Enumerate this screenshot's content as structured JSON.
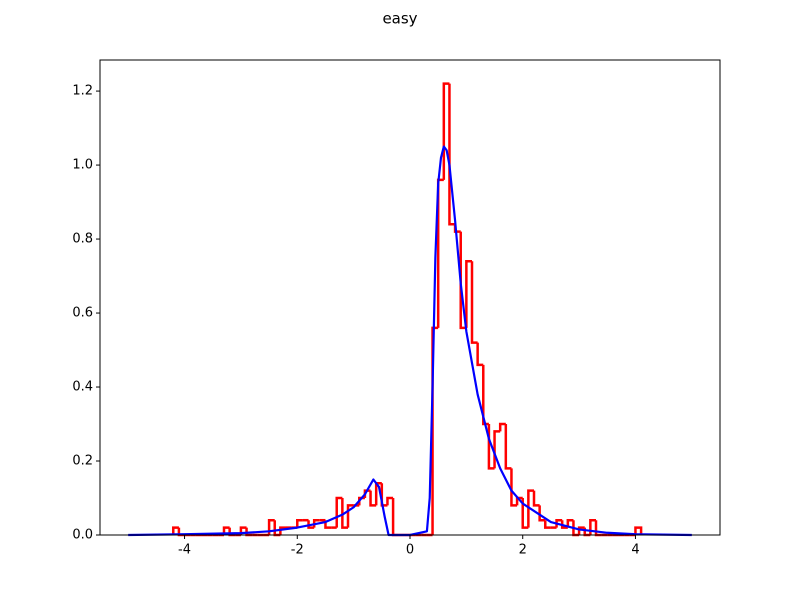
{
  "chart_data": {
    "type": "histogram",
    "title": "easy",
    "color": "#ff0000",
    "bins": [
      -4.2,
      -4.1,
      -4.0,
      -3.9,
      -3.8,
      -3.7,
      -3.6,
      -3.5,
      -3.4,
      -3.3,
      -3.2,
      -3.1,
      -3.0,
      -2.9,
      -2.8,
      -2.7,
      -2.6,
      -2.5,
      -2.4,
      -2.3,
      -2.2,
      -2.1,
      -2.0,
      -1.9,
      -1.8,
      -1.7,
      -1.6,
      -1.5,
      -1.4,
      -1.3,
      -1.2,
      -1.1,
      -1.0,
      -0.9,
      -0.8,
      -0.7,
      -0.6,
      -0.5,
      -0.4,
      -0.3,
      -0.2,
      -0.1,
      0.0,
      0.1,
      0.2,
      0.3,
      0.4,
      0.5,
      0.6,
      0.7,
      0.8,
      0.9,
      1.0,
      1.1,
      1.2,
      1.3,
      1.4,
      1.5,
      1.6,
      1.7,
      1.8,
      1.9,
      2.0,
      2.1,
      2.2,
      2.3,
      2.4,
      2.5,
      2.6,
      2.7,
      2.8,
      2.9,
      3.0,
      3.1,
      3.2,
      3.3,
      3.4,
      3.5,
      3.6,
      3.7,
      3.8,
      3.9,
      4.0,
      4.1
    ],
    "values": [
      0.02,
      0,
      0,
      0,
      0,
      0,
      0,
      0,
      0,
      0.02,
      0,
      0,
      0.02,
      0,
      0,
      0,
      0,
      0.04,
      0,
      0.02,
      0.02,
      0.02,
      0.04,
      0.04,
      0.02,
      0.04,
      0.04,
      0.02,
      0.02,
      0.1,
      0.02,
      0.08,
      0.08,
      0.1,
      0.12,
      0.08,
      0.14,
      0.08,
      0.1,
      0,
      0,
      0,
      0,
      0,
      0,
      0,
      0.56,
      0.96,
      1.22,
      0.84,
      0.82,
      0.56,
      0.74,
      0.52,
      0.46,
      0.3,
      0.18,
      0.28,
      0.3,
      0.18,
      0.08,
      0.1,
      0.02,
      0.12,
      0.08,
      0.04,
      0.02,
      0.02,
      0.04,
      0.02,
      0.04,
      0,
      0.02,
      0,
      0.04,
      0,
      0,
      0,
      0,
      0,
      0,
      0,
      0.02
    ],
    "series": [
      {
        "type": "line",
        "color": "#0000ff",
        "x": [
          -5,
          -4,
          -3,
          -2.5,
          -2,
          -1.5,
          -1.2,
          -1,
          -0.8,
          -0.65,
          -0.55,
          -0.45,
          -0.38,
          0,
          0.3,
          0.35,
          0.4,
          0.45,
          0.5,
          0.55,
          0.6,
          0.65,
          0.7,
          0.8,
          0.9,
          1.0,
          1.2,
          1.4,
          1.6,
          1.8,
          2.0,
          2.5,
          3.0,
          3.5,
          4.0,
          4.5,
          5.0
        ],
        "values": [
          0,
          0.002,
          0.005,
          0.01,
          0.02,
          0.035,
          0.055,
          0.075,
          0.11,
          0.15,
          0.13,
          0.05,
          0,
          0,
          0.01,
          0.1,
          0.4,
          0.75,
          0.95,
          1.02,
          1.05,
          1.04,
          1.0,
          0.85,
          0.68,
          0.55,
          0.38,
          0.26,
          0.18,
          0.12,
          0.085,
          0.035,
          0.015,
          0.006,
          0.002,
          0.001,
          0
        ]
      }
    ],
    "xlim": [
      -5.5,
      5.5
    ],
    "xticks": [
      -4,
      -2,
      0,
      2,
      4
    ],
    "ylim": [
      0,
      1.284
    ],
    "yticks": [
      {
        "value": 0,
        "label": "0.0"
      },
      0.2,
      0.4,
      0.6,
      0.8,
      {
        "value": 1,
        "label": "1.0"
      },
      1.2
    ]
  }
}
